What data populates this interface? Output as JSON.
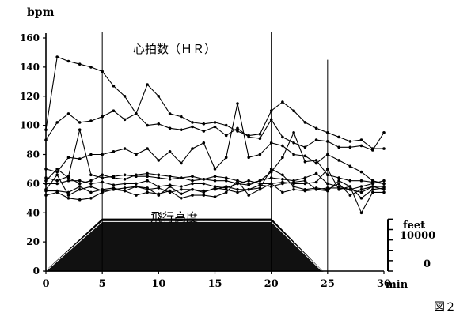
{
  "chart_data": {
    "type": "line",
    "title": "心拍数（ＨＲ）",
    "ylabel": "bpm",
    "xunit": "min",
    "xlim": [
      0,
      30
    ],
    "ylim": [
      0,
      160
    ],
    "xticks": [
      0,
      5,
      10,
      15,
      20,
      25,
      30
    ],
    "yticks": [
      0,
      20,
      40,
      60,
      80,
      100,
      120,
      140,
      160
    ],
    "vlines": [
      5,
      20,
      25
    ],
    "altitude": {
      "label": "飛行高度",
      "unit": "feet",
      "max_label": "10000",
      "min_label": "0",
      "profile": [
        [
          0,
          0
        ],
        [
          5,
          10000
        ],
        [
          20,
          10000
        ],
        [
          24.5,
          0
        ]
      ],
      "y_fraction_of_top_at_max": 0.16
    },
    "series": [
      {
        "x": [
          0,
          1,
          2,
          3,
          4,
          5,
          6,
          7,
          8,
          9,
          10,
          11,
          12,
          13,
          14,
          15,
          16,
          17,
          18,
          19,
          20,
          21,
          22,
          23,
          24,
          25,
          26,
          27,
          28,
          29,
          30
        ],
        "values": [
          97,
          147,
          144,
          142,
          140,
          137,
          127,
          120,
          108,
          128,
          120,
          108,
          106,
          102,
          101,
          102,
          100,
          96,
          93,
          94,
          110,
          116,
          110,
          102,
          98,
          95,
          92,
          89,
          90,
          84,
          84
        ]
      },
      {
        "x": [
          0,
          1,
          2,
          3,
          4,
          5,
          6,
          7,
          8,
          9,
          10,
          11,
          12,
          13,
          14,
          15,
          16,
          17,
          18,
          19,
          20,
          21,
          22,
          23,
          24,
          25,
          26,
          27,
          28,
          29,
          30
        ],
        "values": [
          90,
          102,
          108,
          102,
          103,
          106,
          110,
          104,
          108,
          100,
          101,
          98,
          97,
          99,
          96,
          99,
          93,
          98,
          92,
          91,
          104,
          92,
          88,
          85,
          90,
          89,
          85,
          85,
          86,
          83,
          95
        ]
      },
      {
        "x": [
          0,
          1,
          2,
          3,
          4,
          5,
          6,
          7,
          8,
          9,
          10,
          11,
          12,
          13,
          14,
          15,
          16,
          17,
          18,
          19,
          20,
          21,
          22,
          23,
          24,
          25,
          26,
          27,
          28,
          29,
          30
        ],
        "values": [
          70,
          68,
          78,
          77,
          80,
          80,
          82,
          84,
          80,
          84,
          76,
          82,
          74,
          84,
          88,
          70,
          78,
          115,
          78,
          80,
          88,
          86,
          80,
          79,
          74,
          80,
          76,
          72,
          68,
          62,
          60
        ]
      },
      {
        "x": [
          0,
          1,
          2,
          3,
          4,
          5,
          6,
          7,
          8,
          9,
          10,
          11,
          12,
          13,
          14,
          15,
          16,
          17,
          18,
          19,
          20,
          21,
          22,
          23,
          24,
          25,
          26,
          27,
          28,
          29,
          30
        ],
        "values": [
          64,
          62,
          65,
          97,
          66,
          64,
          65,
          66,
          65,
          65,
          64,
          63,
          64,
          65,
          63,
          65,
          64,
          62,
          60,
          62,
          68,
          78,
          95,
          75,
          76,
          66,
          64,
          62,
          62,
          61,
          60
        ]
      },
      {
        "x": [
          0,
          1,
          2,
          3,
          4,
          5,
          6,
          7,
          8,
          9,
          10,
          11,
          12,
          13,
          14,
          15,
          16,
          17,
          18,
          19,
          20,
          21,
          22,
          23,
          24,
          25,
          26,
          27,
          28,
          29,
          30
        ],
        "values": [
          62,
          70,
          64,
          60,
          62,
          66,
          64,
          63,
          66,
          67,
          66,
          65,
          64,
          62,
          63,
          62,
          62,
          60,
          59,
          62,
          64,
          63,
          62,
          64,
          67,
          60,
          58,
          56,
          58,
          60,
          62
        ]
      },
      {
        "x": [
          0,
          1,
          2,
          3,
          4,
          5,
          6,
          7,
          8,
          9,
          10,
          11,
          12,
          13,
          14,
          15,
          16,
          17,
          18,
          19,
          20,
          21,
          22,
          23,
          24,
          25,
          26,
          27,
          28,
          29,
          30
        ],
        "values": [
          60,
          60,
          62,
          62,
          60,
          61,
          59,
          60,
          60,
          62,
          58,
          59,
          58,
          60,
          60,
          58,
          57,
          60,
          62,
          60,
          60,
          61,
          60,
          60,
          61,
          70,
          56,
          58,
          50,
          56,
          57
        ]
      },
      {
        "x": [
          0,
          1,
          2,
          3,
          4,
          5,
          6,
          7,
          8,
          9,
          10,
          11,
          12,
          13,
          14,
          15,
          16,
          17,
          18,
          19,
          20,
          21,
          22,
          23,
          24,
          25,
          26,
          27,
          28,
          29,
          30
        ],
        "values": [
          55,
          55,
          54,
          58,
          54,
          56,
          57,
          55,
          58,
          56,
          57,
          54,
          56,
          56,
          55,
          56,
          58,
          56,
          56,
          57,
          70,
          66,
          58,
          56,
          57,
          56,
          60,
          52,
          56,
          58,
          58
        ]
      },
      {
        "x": [
          0,
          1,
          2,
          3,
          4,
          5,
          6,
          7,
          8,
          9,
          10,
          11,
          12,
          13,
          14,
          15,
          16,
          17,
          18,
          19,
          20,
          21,
          22,
          23,
          24,
          25,
          26,
          27,
          28,
          29,
          30
        ],
        "values": [
          52,
          54,
          50,
          49,
          50,
          54,
          56,
          55,
          52,
          54,
          53,
          55,
          50,
          52,
          52,
          51,
          54,
          62,
          52,
          56,
          60,
          54,
          56,
          55,
          56,
          55,
          62,
          58,
          40,
          54,
          54
        ]
      },
      {
        "x": [
          0,
          1,
          2,
          3,
          4,
          5,
          6,
          7,
          8,
          9,
          10,
          11,
          12,
          13,
          14,
          15,
          16,
          17,
          18,
          19,
          20,
          21,
          22,
          23,
          24,
          25,
          26,
          27,
          28,
          29,
          30
        ],
        "values": [
          56,
          66,
          52,
          56,
          58,
          55,
          56,
          57,
          58,
          57,
          52,
          58,
          53,
          56,
          54,
          57,
          56,
          54,
          56,
          59,
          58,
          60,
          61,
          62,
          56,
          57,
          57,
          56,
          54,
          58,
          56
        ]
      }
    ]
  },
  "figure_label": "図２"
}
